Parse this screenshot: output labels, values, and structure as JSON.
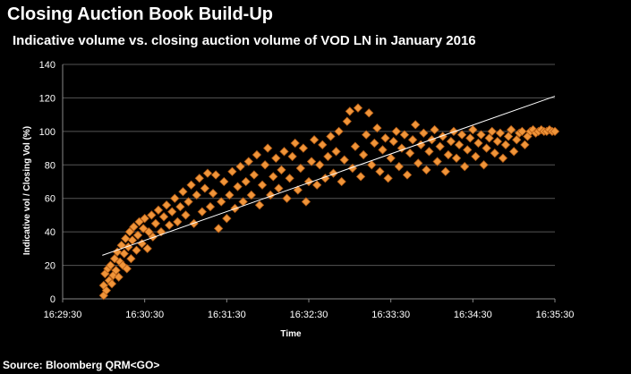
{
  "colors": {
    "background": "#000000",
    "marker": "#f0953a",
    "marker_edge": "#b05a14",
    "trendline": "#ffffff",
    "grid": "#555555",
    "text": "#ffffff"
  },
  "footer": {
    "source": "Source: Bloomberg QRM<GO>"
  },
  "chart_data": {
    "type": "scatter",
    "title": "Closing Auction Book Build-Up",
    "subtitle": "Indicative volume vs. closing auction volume of VOD LN in January 2016",
    "xlabel": "Time",
    "ylabel": "Indicative vol / Closing Vol (%)",
    "x_tick_labels": [
      "16:29:30",
      "16:30:30",
      "16:31:30",
      "16:32:30",
      "16:33:30",
      "16:34:30",
      "16:35:30"
    ],
    "y_tick_labels": [
      "0",
      "20",
      "40",
      "60",
      "80",
      "100",
      "120",
      "140"
    ],
    "xlim": [
      "16:29:30",
      "16:35:30"
    ],
    "ylim": [
      0,
      140
    ],
    "grid": "horizontal",
    "legend": "none",
    "marker": "diamond",
    "trendline": {
      "x": [
        "16:29:59",
        "16:35:30"
      ],
      "y": [
        26,
        121
      ]
    },
    "series": [
      {
        "points": [
          [
            "16:30:00",
            2
          ],
          [
            "16:30:00",
            8
          ],
          [
            "16:30:01",
            15
          ],
          [
            "16:30:02",
            5
          ],
          [
            "16:30:03",
            18
          ],
          [
            "16:30:04",
            11
          ],
          [
            "16:30:05",
            20
          ],
          [
            "16:30:06",
            9
          ],
          [
            "16:30:07",
            14
          ],
          [
            "16:30:08",
            24
          ],
          [
            "16:30:09",
            17
          ],
          [
            "16:30:10",
            28
          ],
          [
            "16:30:11",
            13
          ],
          [
            "16:30:12",
            22
          ],
          [
            "16:30:13",
            32
          ],
          [
            "16:30:14",
            20
          ],
          [
            "16:30:15",
            27
          ],
          [
            "16:30:16",
            36
          ],
          [
            "16:30:17",
            18
          ],
          [
            "16:30:18",
            31
          ],
          [
            "16:30:19",
            40
          ],
          [
            "16:30:20",
            24
          ],
          [
            "16:30:21",
            35
          ],
          [
            "16:30:22",
            43
          ],
          [
            "16:30:24",
            29
          ],
          [
            "16:30:25",
            38
          ],
          [
            "16:30:26",
            46
          ],
          [
            "16:30:28",
            33
          ],
          [
            "16:30:29",
            42
          ],
          [
            "16:30:30",
            48
          ],
          [
            "16:30:32",
            30
          ],
          [
            "16:30:33",
            40
          ],
          [
            "16:30:35",
            50
          ],
          [
            "16:30:36",
            37
          ],
          [
            "16:30:38",
            45
          ],
          [
            "16:30:40",
            53
          ],
          [
            "16:30:42",
            40
          ],
          [
            "16:30:44",
            49
          ],
          [
            "16:30:46",
            56
          ],
          [
            "16:30:48",
            44
          ],
          [
            "16:30:50",
            52
          ],
          [
            "16:30:52",
            60
          ],
          [
            "16:30:54",
            46
          ],
          [
            "16:30:56",
            55
          ],
          [
            "16:30:58",
            64
          ],
          [
            "16:31:00",
            50
          ],
          [
            "16:31:02",
            58
          ],
          [
            "16:31:04",
            68
          ],
          [
            "16:31:06",
            45
          ],
          [
            "16:31:08",
            62
          ],
          [
            "16:31:10",
            72
          ],
          [
            "16:31:12",
            52
          ],
          [
            "16:31:14",
            66
          ],
          [
            "16:31:16",
            75
          ],
          [
            "16:31:18",
            55
          ],
          [
            "16:31:20",
            63
          ],
          [
            "16:31:22",
            74
          ],
          [
            "16:31:24",
            42
          ],
          [
            "16:31:26",
            58
          ],
          [
            "16:31:28",
            70
          ],
          [
            "16:31:30",
            48
          ],
          [
            "16:31:32",
            62
          ],
          [
            "16:31:34",
            76
          ],
          [
            "16:31:36",
            54
          ],
          [
            "16:31:38",
            67
          ],
          [
            "16:31:40",
            79
          ],
          [
            "16:31:42",
            58
          ],
          [
            "16:31:44",
            70
          ],
          [
            "16:31:46",
            82
          ],
          [
            "16:31:48",
            62
          ],
          [
            "16:31:50",
            74
          ],
          [
            "16:31:52",
            86
          ],
          [
            "16:31:54",
            56
          ],
          [
            "16:31:56",
            68
          ],
          [
            "16:31:58",
            80
          ],
          [
            "16:32:00",
            90
          ],
          [
            "16:32:02",
            62
          ],
          [
            "16:32:04",
            73
          ],
          [
            "16:32:06",
            84
          ],
          [
            "16:32:08",
            66
          ],
          [
            "16:32:10",
            77
          ],
          [
            "16:32:12",
            88
          ],
          [
            "16:32:14",
            60
          ],
          [
            "16:32:16",
            72
          ],
          [
            "16:32:18",
            85
          ],
          [
            "16:32:20",
            93
          ],
          [
            "16:32:22",
            65
          ],
          [
            "16:32:24",
            78
          ],
          [
            "16:32:26",
            90
          ],
          [
            "16:32:28",
            58
          ],
          [
            "16:32:30",
            70
          ],
          [
            "16:32:32",
            82
          ],
          [
            "16:32:34",
            95
          ],
          [
            "16:32:36",
            68
          ],
          [
            "16:32:38",
            80
          ],
          [
            "16:32:40",
            92
          ],
          [
            "16:32:42",
            72
          ],
          [
            "16:32:44",
            85
          ],
          [
            "16:32:46",
            97
          ],
          [
            "16:32:48",
            75
          ],
          [
            "16:32:50",
            88
          ],
          [
            "16:32:52",
            100
          ],
          [
            "16:32:54",
            70
          ],
          [
            "16:32:56",
            83
          ],
          [
            "16:32:58",
            106
          ],
          [
            "16:33:00",
            112
          ],
          [
            "16:33:02",
            78
          ],
          [
            "16:33:04",
            91
          ],
          [
            "16:33:06",
            114
          ],
          [
            "16:33:08",
            73
          ],
          [
            "16:33:10",
            86
          ],
          [
            "16:33:12",
            98
          ],
          [
            "16:33:14",
            111
          ],
          [
            "16:33:16",
            80
          ],
          [
            "16:33:18",
            93
          ],
          [
            "16:33:20",
            102
          ],
          [
            "16:33:22",
            76
          ],
          [
            "16:33:24",
            89
          ],
          [
            "16:33:26",
            96
          ],
          [
            "16:33:28",
            72
          ],
          [
            "16:33:30",
            84
          ],
          [
            "16:33:32",
            94
          ],
          [
            "16:33:34",
            100
          ],
          [
            "16:33:36",
            79
          ],
          [
            "16:33:38",
            90
          ],
          [
            "16:33:40",
            98
          ],
          [
            "16:33:42",
            74
          ],
          [
            "16:33:44",
            87
          ],
          [
            "16:33:46",
            95
          ],
          [
            "16:33:48",
            104
          ],
          [
            "16:33:50",
            81
          ],
          [
            "16:33:52",
            92
          ],
          [
            "16:33:54",
            99
          ],
          [
            "16:33:56",
            77
          ],
          [
            "16:33:58",
            88
          ],
          [
            "16:34:00",
            95
          ],
          [
            "16:34:02",
            101
          ],
          [
            "16:34:04",
            82
          ],
          [
            "16:34:06",
            91
          ],
          [
            "16:34:08",
            97
          ],
          [
            "16:34:10",
            76
          ],
          [
            "16:34:12",
            86
          ],
          [
            "16:34:14",
            94
          ],
          [
            "16:34:16",
            100
          ],
          [
            "16:34:18",
            84
          ],
          [
            "16:34:20",
            92
          ],
          [
            "16:34:22",
            98
          ],
          [
            "16:34:24",
            79
          ],
          [
            "16:34:26",
            89
          ],
          [
            "16:34:28",
            96
          ],
          [
            "16:34:30",
            101
          ],
          [
            "16:34:32",
            85
          ],
          [
            "16:34:34",
            93
          ],
          [
            "16:34:36",
            98
          ],
          [
            "16:34:38",
            80
          ],
          [
            "16:34:40",
            90
          ],
          [
            "16:34:42",
            96
          ],
          [
            "16:34:44",
            100
          ],
          [
            "16:34:46",
            87
          ],
          [
            "16:34:48",
            94
          ],
          [
            "16:34:50",
            99
          ],
          [
            "16:34:52",
            84
          ],
          [
            "16:34:54",
            92
          ],
          [
            "16:34:56",
            97
          ],
          [
            "16:34:58",
            101
          ],
          [
            "16:35:00",
            88
          ],
          [
            "16:35:02",
            95
          ],
          [
            "16:35:04",
            99
          ],
          [
            "16:35:06",
            100
          ],
          [
            "16:35:08",
            92
          ],
          [
            "16:35:10",
            97
          ],
          [
            "16:35:12",
            100
          ],
          [
            "16:35:14",
            101
          ],
          [
            "16:35:16",
            99
          ],
          [
            "16:35:18",
            100
          ],
          [
            "16:35:20",
            101
          ],
          [
            "16:35:22",
            100
          ],
          [
            "16:35:24",
            100
          ],
          [
            "16:35:26",
            101
          ],
          [
            "16:35:28",
            100
          ],
          [
            "16:35:30",
            100
          ]
        ]
      }
    ]
  }
}
